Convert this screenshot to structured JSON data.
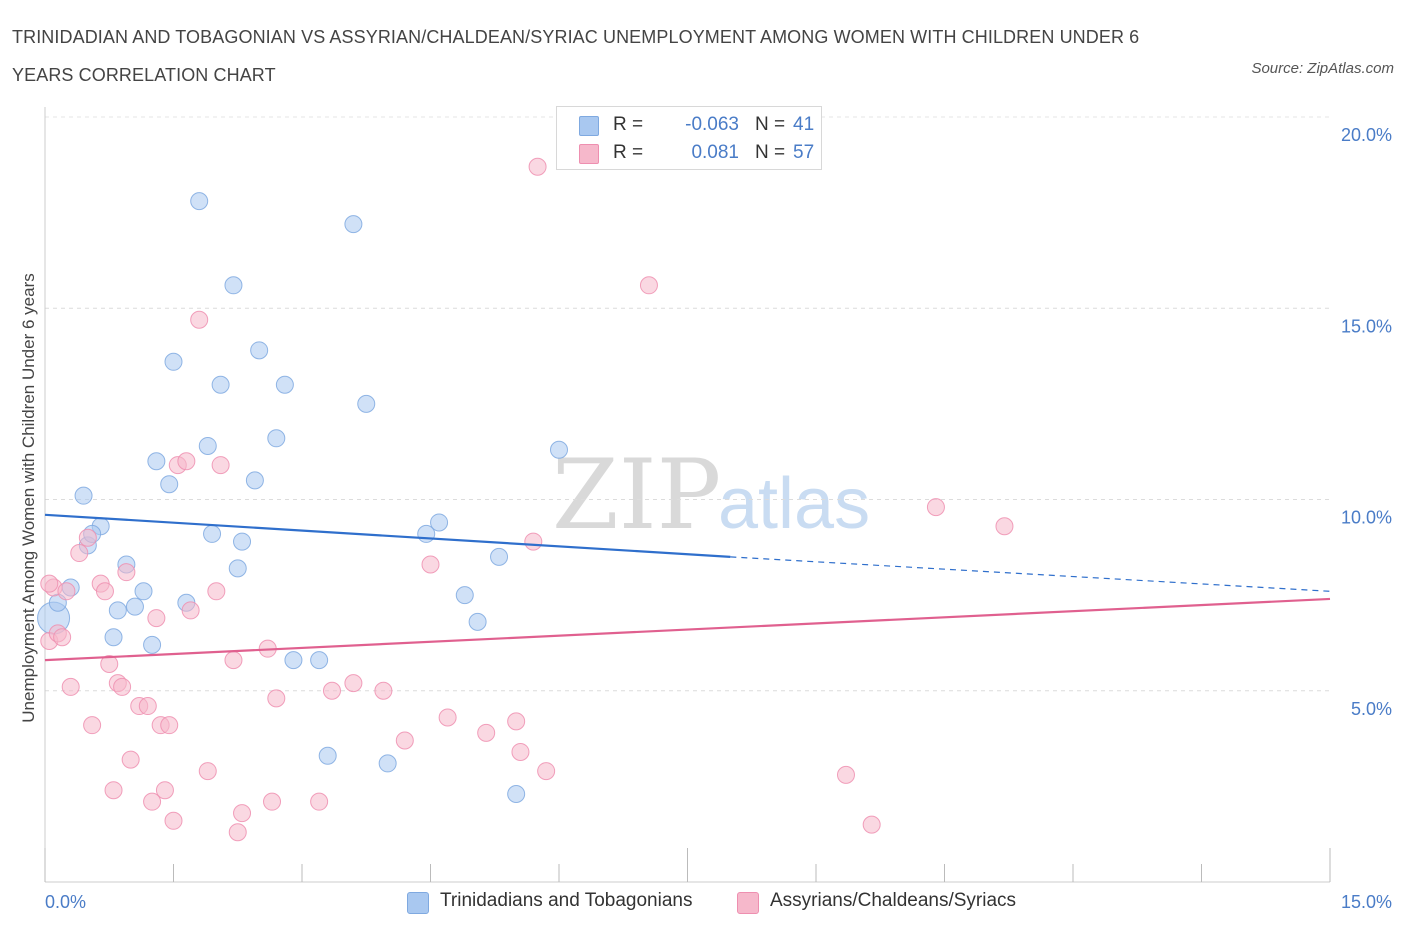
{
  "title": "TRINIDADIAN AND TOBAGONIAN VS ASSYRIAN/CHALDEAN/SYRIAC UNEMPLOYMENT AMONG WOMEN WITH CHILDREN UNDER 6 YEARS CORRELATION CHART",
  "source": "Source: ZipAtlas.com",
  "watermark": {
    "zip": "ZIP",
    "atlas": "atlas"
  },
  "legend_top": [
    {
      "r_label": "R =",
      "r_value": "-0.063",
      "n_label": "N =",
      "n_value": "41",
      "color": "#a9c8f0"
    },
    {
      "r_label": "R =",
      "r_value": "0.081",
      "n_label": "N =",
      "n_value": "57",
      "color": "#f6b8cb"
    }
  ],
  "legend_bottom": [
    {
      "label": "Trinidadians and Tobagonians",
      "color": "#a9c8f0"
    },
    {
      "label": "Assyrians/Chaldeans/Syriacs",
      "color": "#f6b8cb"
    }
  ],
  "chart_data": {
    "type": "scatter",
    "ylabel": "Unemployment Among Women with Children Under 6 years",
    "xlabel": "",
    "xlim": [
      0,
      15
    ],
    "ylim": [
      0,
      20
    ],
    "x_tick_labels": [
      "0.0%",
      "15.0%"
    ],
    "y_ticks": [
      5,
      10,
      15,
      20
    ],
    "y_tick_labels": [
      "5.0%",
      "10.0%",
      "15.0%",
      "20.0%"
    ],
    "grid": true,
    "series": [
      {
        "name": "Trinidadians and Tobagonians",
        "color": "#a9c8f0",
        "stroke": "#7fa9e0",
        "trend_color": "#2f6fcc",
        "trend": {
          "x0": 0,
          "y0": 9.6,
          "x1": 8.0,
          "y1": 8.5,
          "dash_to_x": 15,
          "dash_to_y": 7.6
        },
        "points": [
          [
            0.1,
            6.9
          ],
          [
            0.15,
            7.3
          ],
          [
            0.3,
            7.7
          ],
          [
            0.5,
            8.8
          ],
          [
            0.45,
            10.1
          ],
          [
            0.65,
            9.3
          ],
          [
            0.55,
            9.1
          ],
          [
            0.85,
            7.1
          ],
          [
            0.8,
            6.4
          ],
          [
            0.95,
            8.3
          ],
          [
            1.05,
            7.2
          ],
          [
            1.15,
            7.6
          ],
          [
            1.25,
            6.2
          ],
          [
            1.3,
            11.0
          ],
          [
            1.45,
            10.4
          ],
          [
            1.5,
            13.6
          ],
          [
            1.65,
            7.3
          ],
          [
            1.8,
            17.8
          ],
          [
            1.9,
            11.4
          ],
          [
            1.95,
            9.1
          ],
          [
            2.05,
            13.0
          ],
          [
            2.2,
            15.6
          ],
          [
            2.25,
            8.2
          ],
          [
            2.3,
            8.9
          ],
          [
            2.45,
            10.5
          ],
          [
            2.5,
            13.9
          ],
          [
            2.7,
            11.6
          ],
          [
            2.8,
            13.0
          ],
          [
            2.9,
            5.8
          ],
          [
            3.2,
            5.8
          ],
          [
            3.3,
            3.3
          ],
          [
            3.6,
            17.2
          ],
          [
            3.75,
            12.5
          ],
          [
            4.0,
            3.1
          ],
          [
            4.45,
            9.1
          ],
          [
            4.6,
            9.4
          ],
          [
            4.9,
            7.5
          ],
          [
            5.05,
            6.8
          ],
          [
            5.3,
            8.5
          ],
          [
            5.5,
            2.3
          ],
          [
            6.0,
            11.3
          ]
        ]
      },
      {
        "name": "Assyrians/Chaldeans/Syriacs",
        "color": "#f6b8cb",
        "stroke": "#ee8fb0",
        "trend_color": "#e0608f",
        "trend": {
          "x0": 0,
          "y0": 5.8,
          "x1": 15,
          "y1": 7.4
        },
        "points": [
          [
            0.05,
            6.3
          ],
          [
            0.1,
            7.7
          ],
          [
            0.15,
            6.5
          ],
          [
            0.2,
            6.4
          ],
          [
            0.25,
            7.6
          ],
          [
            0.3,
            5.1
          ],
          [
            0.4,
            8.6
          ],
          [
            0.55,
            4.1
          ],
          [
            0.5,
            9.0
          ],
          [
            0.65,
            7.8
          ],
          [
            0.7,
            7.6
          ],
          [
            0.75,
            5.7
          ],
          [
            0.8,
            2.4
          ],
          [
            0.85,
            5.2
          ],
          [
            0.9,
            5.1
          ],
          [
            0.95,
            8.1
          ],
          [
            1.0,
            3.2
          ],
          [
            1.1,
            4.6
          ],
          [
            1.2,
            4.6
          ],
          [
            1.25,
            2.1
          ],
          [
            1.3,
            6.9
          ],
          [
            1.35,
            4.1
          ],
          [
            1.4,
            2.4
          ],
          [
            1.45,
            4.1
          ],
          [
            1.5,
            1.6
          ],
          [
            1.55,
            10.9
          ],
          [
            1.65,
            11.0
          ],
          [
            1.7,
            7.1
          ],
          [
            1.8,
            14.7
          ],
          [
            1.9,
            2.9
          ],
          [
            2.0,
            7.6
          ],
          [
            2.05,
            10.9
          ],
          [
            2.2,
            5.8
          ],
          [
            2.25,
            1.3
          ],
          [
            2.3,
            1.8
          ],
          [
            2.6,
            6.1
          ],
          [
            2.65,
            2.1
          ],
          [
            2.7,
            4.8
          ],
          [
            3.2,
            2.1
          ],
          [
            3.35,
            5.0
          ],
          [
            3.6,
            5.2
          ],
          [
            3.95,
            5.0
          ],
          [
            4.2,
            3.7
          ],
          [
            4.5,
            8.3
          ],
          [
            4.7,
            4.3
          ],
          [
            5.15,
            3.9
          ],
          [
            5.5,
            4.2
          ],
          [
            5.55,
            3.4
          ],
          [
            5.7,
            8.9
          ],
          [
            5.85,
            2.9
          ],
          [
            5.75,
            18.7
          ],
          [
            7.05,
            15.6
          ],
          [
            9.35,
            2.8
          ],
          [
            9.65,
            1.5
          ],
          [
            10.4,
            9.8
          ],
          [
            11.2,
            9.3
          ],
          [
            0.05,
            7.8
          ]
        ]
      }
    ]
  }
}
